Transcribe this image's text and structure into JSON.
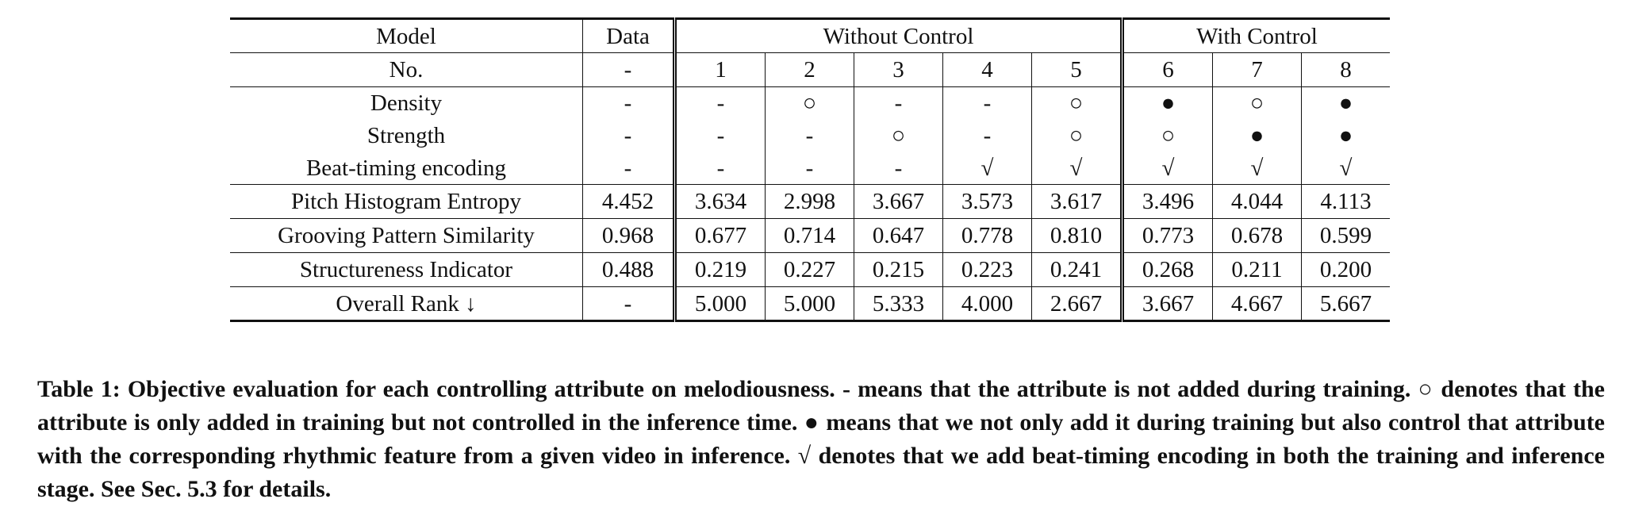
{
  "table": {
    "headers": {
      "model": "Model",
      "data": "Data",
      "group_without": "Without Control",
      "group_with": "With Control"
    },
    "no_row": {
      "label": "No.",
      "data": "-",
      "cols": [
        "1",
        "2",
        "3",
        "4",
        "5",
        "6",
        "7",
        "8"
      ]
    },
    "attribute_rows": [
      {
        "label": "Density",
        "data": "-",
        "values": [
          "-",
          "○",
          "-",
          "-",
          "○",
          "●",
          "○",
          "●"
        ]
      },
      {
        "label": "Strength",
        "data": "-",
        "values": [
          "-",
          "-",
          "○",
          "-",
          "○",
          "○",
          "●",
          "●"
        ]
      },
      {
        "label": "Beat-timing encoding",
        "data": "-",
        "values": [
          "-",
          "-",
          "-",
          "√",
          "√",
          "√",
          "√",
          "√"
        ]
      }
    ],
    "metric_rows": [
      {
        "label": "Pitch Histogram Entropy",
        "data": "4.452",
        "values": [
          "3.634",
          "2.998",
          "3.667",
          "3.573",
          "3.617",
          "3.496",
          "4.044",
          "4.113"
        ],
        "bold_index": 7
      },
      {
        "label": "Grooving Pattern Similarity",
        "data": "0.968",
        "values": [
          "0.677",
          "0.714",
          "0.647",
          "0.778",
          "0.810",
          "0.773",
          "0.678",
          "0.599"
        ],
        "bold_index": 4
      },
      {
        "label": "Structureness Indicator",
        "data": "0.488",
        "values": [
          "0.219",
          "0.227",
          "0.215",
          "0.223",
          "0.241",
          "0.268",
          "0.211",
          "0.200"
        ],
        "bold_index": 5
      }
    ],
    "rank_row": {
      "label": "Overall Rank ↓",
      "data": "-",
      "values": [
        "5.000",
        "5.000",
        "5.333",
        "4.000",
        "2.667",
        "3.667",
        "4.667",
        "5.667"
      ],
      "bold_index": 4
    }
  },
  "caption": "Table 1: Objective evaluation for each controlling attribute on melodiousness. - means that the attribute is not added during training. ○ denotes that the attribute is only added in training but not controlled in the inference time. ● means that we not only add it during training but also control that attribute with the corresponding rhythmic feature from a given video in inference. √ denotes that we add beat-timing encoding in both the training and inference stage. See Sec. 5.3 for details."
}
